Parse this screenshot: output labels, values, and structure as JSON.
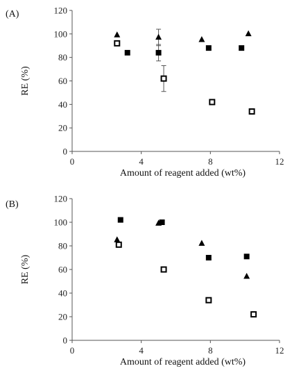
{
  "chart_data": [
    {
      "type": "scatter",
      "panel_label": "(A)",
      "xlabel": "Amount of reagent added (wt%)",
      "ylabel": "RE (%)",
      "xlim": [
        0,
        12
      ],
      "ylim": [
        0,
        120
      ],
      "xticks": [
        "0",
        "4",
        "8",
        "12"
      ],
      "yticks": [
        "0",
        "20",
        "40",
        "60",
        "80",
        "100",
        "120"
      ],
      "grid": false,
      "series": [
        {
          "marker": "triangle-filled",
          "points": [
            {
              "x": 2.6,
              "y": 99
            },
            {
              "x": 5.0,
              "y": 97,
              "err": 7
            },
            {
              "x": 7.5,
              "y": 95
            },
            {
              "x": 10.2,
              "y": 100
            }
          ]
        },
        {
          "marker": "square-filled",
          "points": [
            {
              "x": 3.2,
              "y": 84
            },
            {
              "x": 5.0,
              "y": 84,
              "err": 7
            },
            {
              "x": 7.9,
              "y": 88
            },
            {
              "x": 9.8,
              "y": 88
            }
          ]
        },
        {
          "marker": "square-open",
          "points": [
            {
              "x": 2.6,
              "y": 92
            },
            {
              "x": 5.3,
              "y": 62,
              "err": 11
            },
            {
              "x": 8.1,
              "y": 42
            },
            {
              "x": 10.4,
              "y": 34
            }
          ]
        }
      ]
    },
    {
      "type": "scatter",
      "panel_label": "(B)",
      "xlabel": "Amount of reagent added (wt%)",
      "ylabel": "RE (%)",
      "xlim": [
        0,
        12
      ],
      "ylim": [
        0,
        120
      ],
      "xticks": [
        "0",
        "4",
        "8",
        "12"
      ],
      "yticks": [
        "0",
        "20",
        "40",
        "60",
        "80",
        "100",
        "120"
      ],
      "grid": false,
      "series": [
        {
          "marker": "triangle-filled",
          "points": [
            {
              "x": 2.6,
              "y": 85
            },
            {
              "x": 5.0,
              "y": 99
            },
            {
              "x": 7.5,
              "y": 82
            },
            {
              "x": 10.1,
              "y": 54
            }
          ]
        },
        {
          "marker": "square-filled",
          "points": [
            {
              "x": 2.8,
              "y": 102
            },
            {
              "x": 5.2,
              "y": 100
            },
            {
              "x": 7.9,
              "y": 70
            },
            {
              "x": 10.1,
              "y": 71
            }
          ]
        },
        {
          "marker": "square-open",
          "points": [
            {
              "x": 2.7,
              "y": 81
            },
            {
              "x": 5.3,
              "y": 60
            },
            {
              "x": 7.9,
              "y": 34
            },
            {
              "x": 10.5,
              "y": 22
            }
          ]
        }
      ]
    }
  ]
}
